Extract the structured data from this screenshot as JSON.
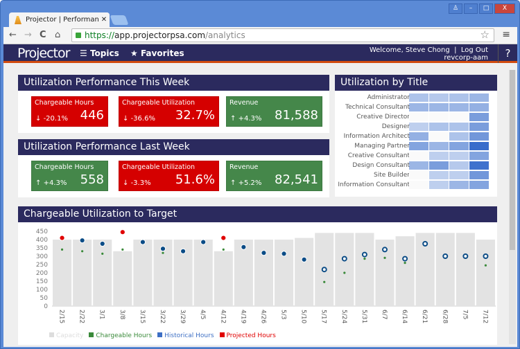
{
  "browser": {
    "tab_title": "Projector | Performance",
    "url_scheme": "https://",
    "url_host": "app.projectorpsa.com",
    "url_path": "/analytics"
  },
  "app": {
    "logo": "Projector",
    "topics": "Topics",
    "favorites": "Favorites",
    "welcome": "Welcome, Steve Chong",
    "logout": "Log Out",
    "account": "revcorp-aam",
    "help": "?"
  },
  "this_week": {
    "title": "Utilization Performance This Week",
    "tiles": [
      {
        "label": "Chargeable Hours",
        "delta": "-20.1%",
        "value": "446",
        "status": "down",
        "color": "#d50000"
      },
      {
        "label": "Chargeable Utilization",
        "delta": "-36.6%",
        "value": "32.7%",
        "status": "down",
        "color": "#d50000"
      },
      {
        "label": "Revenue",
        "delta": "+4.3%",
        "value": "81,588",
        "status": "up",
        "color": "#45874a"
      }
    ]
  },
  "last_week": {
    "title": "Utilization Performance Last Week",
    "tiles": [
      {
        "label": "Chargeable Hours",
        "delta": "+4.3%",
        "value": "558",
        "status": "up",
        "color": "#45874a"
      },
      {
        "label": "Chargeable Utilization",
        "delta": "-3.3%",
        "value": "51.6%",
        "status": "down",
        "color": "#d50000"
      },
      {
        "label": "Revenue",
        "delta": "+5.2%",
        "value": "82,541",
        "status": "up",
        "color": "#45874a"
      }
    ]
  },
  "by_title": {
    "title": "Utilization by Title",
    "rows": [
      {
        "label": "Administrator",
        "levels": [
          0.3,
          0.25,
          0.3,
          0.4
        ]
      },
      {
        "label": "Technical Consultant",
        "levels": [
          0.4,
          0.4,
          0.4,
          0.45
        ]
      },
      {
        "label": "Creative Director",
        "levels": [
          0,
          0,
          0,
          0.6
        ]
      },
      {
        "label": "Designer",
        "levels": [
          0.2,
          0.3,
          0.3,
          0.6
        ]
      },
      {
        "label": "Information Architect",
        "levels": [
          0.45,
          0,
          0.3,
          0.65
        ]
      },
      {
        "label": "Managing Partner",
        "levels": [
          0.55,
          0.4,
          0.55,
          1
        ]
      },
      {
        "label": "Creative Consultant",
        "levels": [
          0,
          0.2,
          0.2,
          0.55
        ]
      },
      {
        "label": "Design Consultant",
        "levels": [
          0.4,
          0.6,
          0.25,
          0.95
        ]
      },
      {
        "label": "Site Builder",
        "levels": [
          0,
          0.2,
          0.2,
          0.65
        ]
      },
      {
        "label": "Information Consultant",
        "levels": [
          0,
          0.2,
          0.4,
          0.55
        ]
      }
    ]
  },
  "chart_data": {
    "type": "bar",
    "title": "Chargeable Utilization to Target",
    "ylim": [
      0,
      450
    ],
    "yticks": [
      0,
      50,
      100,
      150,
      200,
      250,
      300,
      350,
      400,
      450
    ],
    "categories": [
      "2/15",
      "2/22",
      "3/1",
      "3/8",
      "3/15",
      "3/22",
      "3/29",
      "4/5",
      "4/12",
      "4/19",
      "4/26",
      "5/3",
      "5/10",
      "5/17",
      "5/24",
      "5/31",
      "6/7",
      "6/14",
      "6/21",
      "6/28",
      "7/5",
      "7/12"
    ],
    "series": [
      {
        "name": "Capacity",
        "color": "#e3e3e3",
        "values": [
          400,
          400,
          400,
          330,
          400,
          400,
          400,
          400,
          330,
          400,
          400,
          400,
          410,
          440,
          440,
          440,
          400,
          420,
          440,
          440,
          440,
          400
        ]
      },
      {
        "name": "Chargeable Hours",
        "color": "#3a8a3a",
        "values": [
          340,
          330,
          315,
          340,
          null,
          320,
          null,
          null,
          340,
          null,
          null,
          null,
          null,
          145,
          200,
          285,
          290,
          260,
          null,
          null,
          null,
          245
        ]
      },
      {
        "name": "Historical Hours",
        "color": "#3d6fc4",
        "values": [
          null,
          395,
          375,
          null,
          385,
          345,
          330,
          385,
          null,
          355,
          320,
          315,
          280,
          220,
          285,
          310,
          340,
          285,
          375,
          300,
          300,
          300
        ]
      },
      {
        "name": "Projected Hours",
        "color": "#e00000",
        "values": [
          410,
          null,
          null,
          445,
          null,
          null,
          null,
          null,
          410,
          null,
          null,
          null,
          null,
          null,
          null,
          null,
          null,
          null,
          null,
          null,
          null,
          null
        ]
      }
    ],
    "hollow_from": "5/17",
    "grid": false,
    "legend": "bottom-left"
  }
}
